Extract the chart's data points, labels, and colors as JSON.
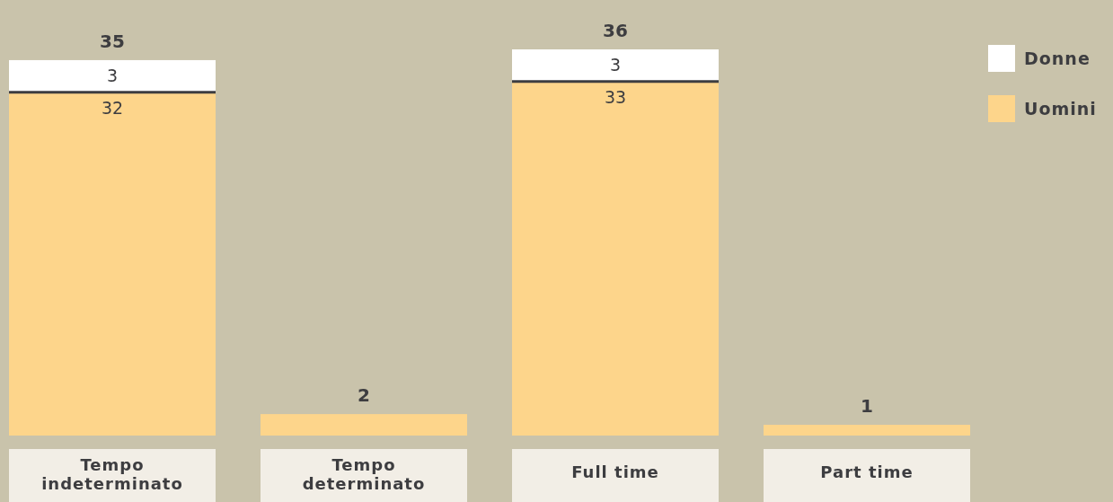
{
  "chart_data": {
    "type": "bar",
    "stacked": true,
    "categories": [
      "Tempo indeterminato",
      "Tempo determinato",
      "Full time",
      "Part time"
    ],
    "series": [
      {
        "name": "Uomini",
        "color": "#fdd58b",
        "values": [
          32,
          2,
          33,
          1
        ],
        "value_labels": [
          "32",
          null,
          "33",
          null
        ]
      },
      {
        "name": "Donne",
        "color": "#ffffff",
        "values": [
          3,
          0,
          3,
          0
        ],
        "value_labels": [
          "3",
          null,
          "3",
          null
        ]
      }
    ],
    "totals": [
      "35",
      "2",
      "36",
      "1"
    ],
    "ylim": [
      0,
      36
    ],
    "legend": "top right",
    "grid": false,
    "tick_labels": "x"
  }
}
